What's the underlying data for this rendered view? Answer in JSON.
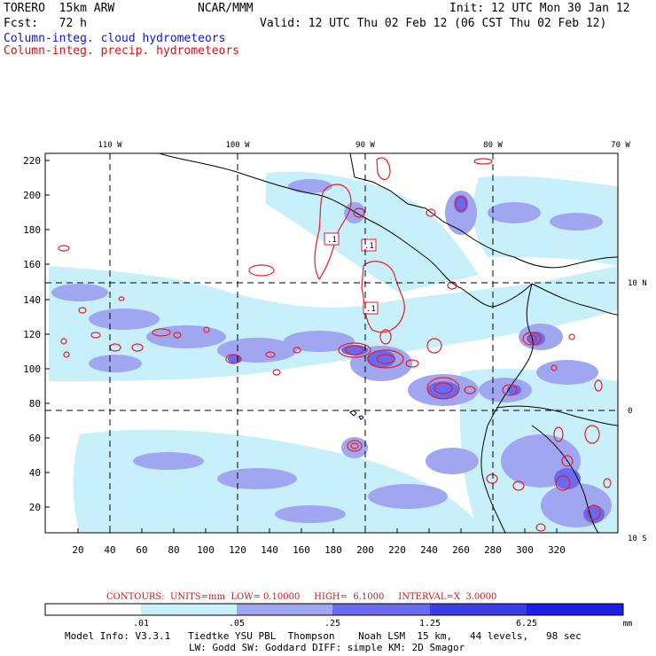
{
  "header": {
    "model": "TORERO  15km ARW",
    "org": "NCAR/MMM",
    "init": "Init: 12 UTC Mon 30 Jan 12",
    "fcst": "Fcst:   72 h",
    "valid": "Valid: 12 UTC Thu 02 Feb 12 (06 CST Thu 02 Feb 12)",
    "field1": "Column-integ. cloud hydrometeors",
    "field2": "Column-integ. precip. hydrometeors"
  },
  "colors": {
    "cloud_text": "#1414c8",
    "precip_text": "#d21414",
    "bin1": "#ffffff",
    "bin2": "#c8f0fa",
    "bin3": "#a0a6f0",
    "bin4": "#6a6af0",
    "bin5": "#3c3ce6",
    "bin6": "#1e1ee6",
    "contour": "#e61e2a"
  },
  "map": {
    "lon_labels": [
      "110 W",
      "100 W",
      "90 W",
      "80 W",
      "70 W"
    ],
    "lat_labels": [
      "10 N",
      "0",
      "10 S"
    ],
    "y_ticks": [
      "220",
      "200",
      "180",
      "160",
      "140",
      "120",
      "100",
      "80",
      "60",
      "40",
      "20"
    ],
    "x_ticks": [
      "20",
      "40",
      "60",
      "80",
      "100",
      "120",
      "140",
      "160",
      "180",
      "200",
      "220",
      "240",
      "260",
      "280",
      "300",
      "320"
    ],
    "contour_labels": [
      ".1",
      ".1",
      ".1"
    ]
  },
  "contours": {
    "text": "CONTOURS:  UNITS=mm  LOW= 0.10000     HIGH=  6.1000     INTERVAL=X  3.0000"
  },
  "colorbar": {
    "labels": [
      ".01",
      ".05",
      ".25",
      "1.25",
      "6.25"
    ],
    "unit": "mm"
  },
  "footer": {
    "line1": "Model Info: V3.3.1   Tiedtke YSU PBL  Thompson    Noah LSM  15 km,   44 levels,   98 sec",
    "line2": "LW: Godd SW: Goddard DIFF: simple KM: 2D Smagor"
  }
}
